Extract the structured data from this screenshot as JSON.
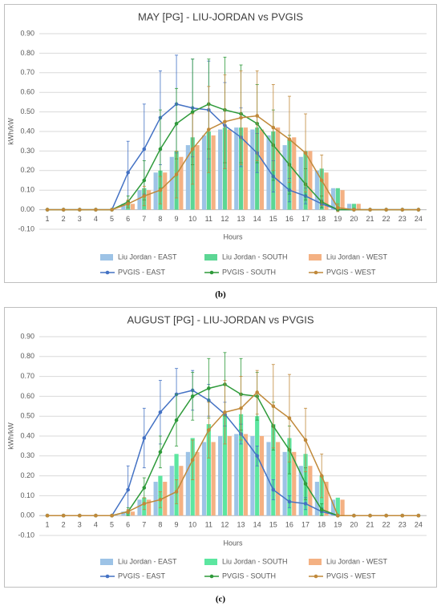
{
  "chart_data": [
    {
      "type": "combo",
      "title": "MAY [PG]  - LIU-JORDAN vs PVGIS",
      "x_label": "Hours",
      "y_label": "kWh/kW",
      "caption": "(b)",
      "categories": [
        "1",
        "2",
        "3",
        "4",
        "5",
        "6",
        "7",
        "8",
        "9",
        "10",
        "11",
        "12",
        "13",
        "14",
        "15",
        "16",
        "17",
        "18",
        "19",
        "20",
        "21",
        "22",
        "23",
        "24"
      ],
      "ylim": [
        -0.1,
        0.9
      ],
      "yticks": [
        {
          "value": -0.1,
          "label": "-0.10"
        },
        {
          "value": 0,
          "label": "0.00"
        },
        {
          "value": 0.1,
          "label": "0.10"
        },
        {
          "value": 0.2,
          "label": "0.20"
        },
        {
          "value": 0.3,
          "label": "0.30"
        },
        {
          "value": 0.4,
          "label": "0.40"
        },
        {
          "value": 0.5,
          "label": "0.50"
        },
        {
          "value": 0.6,
          "label": "0.60"
        },
        {
          "value": 0.7,
          "label": "0.70"
        },
        {
          "value": 0.8,
          "label": "0.80"
        },
        {
          "value": 0.9,
          "label": "0.90"
        }
      ],
      "grid": true,
      "series": [
        {
          "name": "Liu Jordan - EAST",
          "kind": "bar",
          "color": "#9dc3e6",
          "values": [
            0,
            0,
            0,
            0,
            0,
            0.03,
            0.1,
            0.19,
            0.27,
            0.33,
            0.38,
            0.41,
            0.42,
            0.41,
            0.38,
            0.33,
            0.27,
            0.2,
            0.11,
            0.03,
            0,
            0,
            0,
            0
          ]
        },
        {
          "name": "Liu Jordan - SOUTH",
          "kind": "bar",
          "color": "#5cd694",
          "values": [
            0,
            0,
            0,
            0,
            0,
            0.03,
            0.11,
            0.2,
            0.3,
            0.37,
            0.4,
            0.42,
            0.42,
            0.42,
            0.4,
            0.36,
            0.3,
            0.21,
            0.11,
            0.03,
            0,
            0,
            0,
            0
          ]
        },
        {
          "name": "Liu Jordan - WEST",
          "kind": "bar",
          "color": "#f4b183",
          "values": [
            0,
            0,
            0,
            0,
            0,
            0.03,
            0.1,
            0.19,
            0.27,
            0.33,
            0.38,
            0.41,
            0.42,
            0.41,
            0.42,
            0.37,
            0.3,
            0.19,
            0.1,
            0.03,
            0,
            0,
            0,
            0
          ]
        },
        {
          "name": "PVGIS - EAST",
          "kind": "line",
          "color": "#4472c4",
          "values": [
            0,
            0,
            0,
            0,
            0,
            0.19,
            0.31,
            0.47,
            0.54,
            0.52,
            0.51,
            0.43,
            0.37,
            0.29,
            0.17,
            0.1,
            0.07,
            0.03,
            0,
            0,
            0,
            0,
            0,
            0
          ],
          "errors": [
            null,
            null,
            null,
            null,
            null,
            0.16,
            0.23,
            0.24,
            0.25,
            0.25,
            0.25,
            0.22,
            0.15,
            0.1,
            0.08,
            0.06,
            0.04,
            0.02,
            null,
            null,
            null,
            null,
            null,
            null
          ]
        },
        {
          "name": "PVGIS - SOUTH",
          "kind": "line",
          "color": "#2e9a3a",
          "values": [
            0,
            0,
            0,
            0,
            0,
            0.04,
            0.15,
            0.31,
            0.44,
            0.5,
            0.54,
            0.51,
            0.49,
            0.44,
            0.33,
            0.23,
            0.13,
            0.04,
            0,
            0,
            0,
            0,
            0,
            0
          ],
          "errors": [
            null,
            null,
            null,
            null,
            null,
            0.03,
            0.1,
            0.2,
            0.18,
            0.27,
            0.23,
            0.27,
            0.25,
            0.2,
            0.18,
            0.15,
            0.08,
            0.03,
            null,
            null,
            null,
            null,
            null,
            null
          ]
        },
        {
          "name": "PVGIS - WEST",
          "kind": "line",
          "color": "#c0893a",
          "values": [
            0,
            0,
            0,
            0,
            0,
            0.03,
            0.07,
            0.1,
            0.18,
            0.31,
            0.41,
            0.45,
            0.47,
            0.48,
            0.42,
            0.36,
            0.29,
            0.15,
            0.01,
            0,
            0,
            0,
            0,
            0
          ],
          "errors": [
            null,
            null,
            null,
            null,
            null,
            0.02,
            0.05,
            0.07,
            0.12,
            0.18,
            0.22,
            0.24,
            0.24,
            0.23,
            0.22,
            0.22,
            0.2,
            0.13,
            0.02,
            null,
            null,
            null,
            null,
            null
          ]
        }
      ]
    },
    {
      "type": "combo",
      "title": "AUGUST [PG]  - LIU-JORDAN vs PVGIS",
      "x_label": "Hours",
      "y_label": "kWh/kW",
      "caption": "(c)",
      "categories": [
        "1",
        "2",
        "3",
        "4",
        "5",
        "6",
        "7",
        "8",
        "9",
        "10",
        "11",
        "12",
        "13",
        "14",
        "15",
        "16",
        "17",
        "18",
        "19",
        "20",
        "21",
        "22",
        "23",
        "24"
      ],
      "ylim": [
        -0.1,
        0.9
      ],
      "yticks": [
        {
          "value": -0.1,
          "label": "-0.10"
        },
        {
          "value": 0,
          "label": "0.00"
        },
        {
          "value": 0.1,
          "label": "0.10"
        },
        {
          "value": 0.2,
          "label": "0.20"
        },
        {
          "value": 0.3,
          "label": "0.30"
        },
        {
          "value": 0.4,
          "label": "0.40"
        },
        {
          "value": 0.5,
          "label": "0.50"
        },
        {
          "value": 0.6,
          "label": "0.60"
        },
        {
          "value": 0.7,
          "label": "0.70"
        },
        {
          "value": 0.8,
          "label": "0.80"
        },
        {
          "value": 0.9,
          "label": "0.90"
        }
      ],
      "grid": true,
      "series": [
        {
          "name": "Liu Jordan - EAST",
          "kind": "bar",
          "color": "#9dc3e6",
          "values": [
            0,
            0,
            0,
            0,
            0,
            0.02,
            0.08,
            0.17,
            0.25,
            0.32,
            0.37,
            0.4,
            0.41,
            0.4,
            0.37,
            0.32,
            0.25,
            0.17,
            0.08,
            0,
            0,
            0,
            0,
            0
          ]
        },
        {
          "name": "Liu Jordan - SOUTH",
          "kind": "bar",
          "color": "#5ce6a0",
          "values": [
            0,
            0,
            0,
            0,
            0,
            0.02,
            0.09,
            0.2,
            0.31,
            0.39,
            0.46,
            0.51,
            0.51,
            0.5,
            0.46,
            0.39,
            0.31,
            0.2,
            0.09,
            0,
            0,
            0,
            0,
            0
          ]
        },
        {
          "name": "Liu Jordan - WEST",
          "kind": "bar",
          "color": "#f4b183",
          "values": [
            0,
            0,
            0,
            0,
            0,
            0.02,
            0.08,
            0.17,
            0.25,
            0.32,
            0.37,
            0.4,
            0.41,
            0.4,
            0.37,
            0.32,
            0.25,
            0.17,
            0.08,
            0,
            0,
            0,
            0,
            0
          ]
        },
        {
          "name": "PVGIS - EAST",
          "kind": "line",
          "color": "#4472c4",
          "values": [
            0,
            0,
            0,
            0,
            0,
            0.13,
            0.39,
            0.52,
            0.61,
            0.63,
            0.58,
            0.51,
            0.41,
            0.3,
            0.13,
            0.07,
            0.06,
            0.02,
            0,
            0,
            0,
            0,
            0,
            0
          ],
          "errors": [
            null,
            null,
            null,
            null,
            null,
            0.12,
            0.15,
            0.16,
            0.13,
            0.1,
            0.08,
            0.06,
            0.05,
            0.05,
            0.05,
            0.03,
            0.03,
            0.02,
            null,
            null,
            null,
            null,
            null,
            null
          ]
        },
        {
          "name": "PVGIS - SOUTH",
          "kind": "line",
          "color": "#2e9a3a",
          "values": [
            0,
            0,
            0,
            0,
            0,
            0.02,
            0.14,
            0.32,
            0.48,
            0.6,
            0.64,
            0.66,
            0.61,
            0.6,
            0.45,
            0.33,
            0.16,
            0.03,
            0,
            0,
            0,
            0,
            0,
            0
          ],
          "errors": [
            null,
            null,
            null,
            null,
            null,
            0.02,
            0.05,
            0.08,
            0.13,
            0.12,
            0.15,
            0.16,
            0.18,
            0.12,
            0.12,
            0.12,
            0.08,
            0.03,
            null,
            null,
            null,
            null,
            null,
            null
          ]
        },
        {
          "name": "PVGIS - WEST",
          "kind": "line",
          "color": "#c0893a",
          "values": [
            0,
            0,
            0,
            0,
            0,
            0.02,
            0.06,
            0.08,
            0.12,
            0.28,
            0.43,
            0.52,
            0.54,
            0.62,
            0.55,
            0.49,
            0.38,
            0.2,
            0,
            0,
            0,
            0,
            0,
            0
          ],
          "errors": [
            null,
            null,
            null,
            null,
            null,
            0.01,
            0.03,
            0.04,
            0.06,
            0.1,
            0.14,
            0.16,
            0.16,
            0.11,
            0.21,
            0.22,
            0.16,
            0.11,
            null,
            null,
            null,
            null,
            null,
            null
          ]
        }
      ]
    }
  ]
}
